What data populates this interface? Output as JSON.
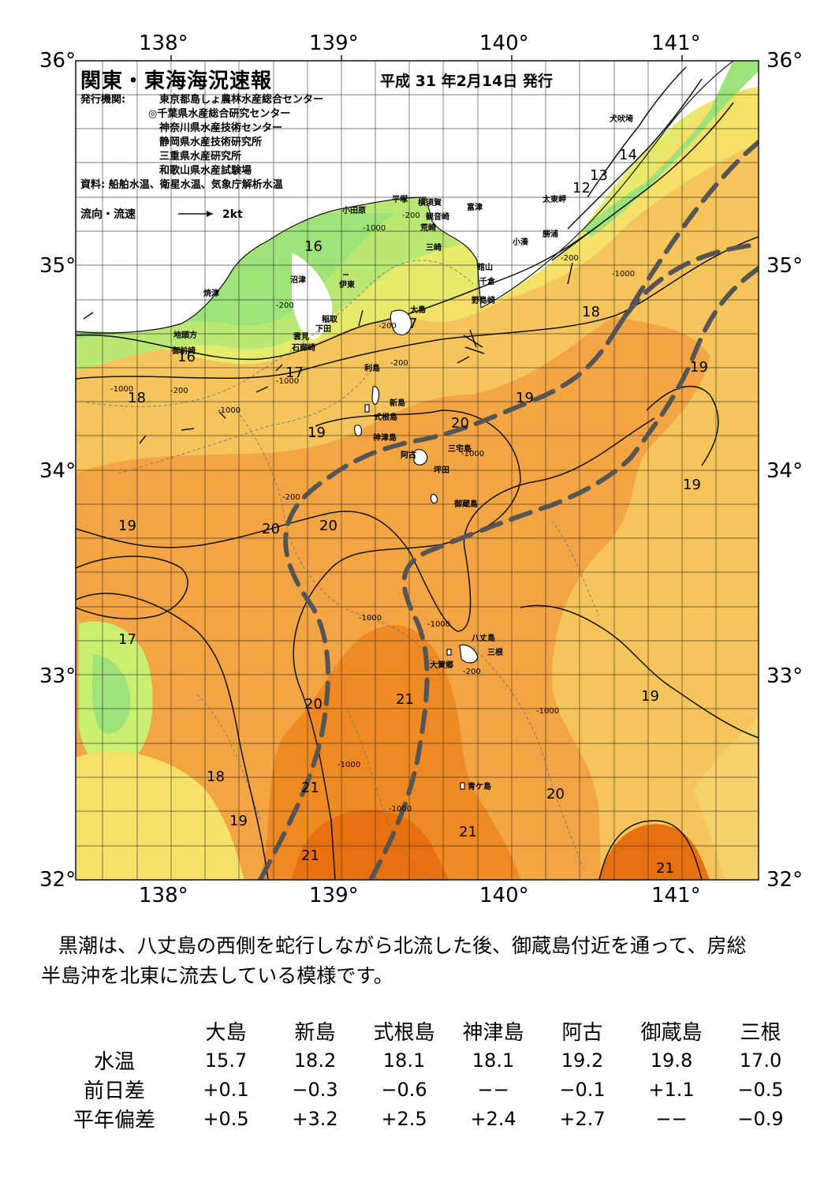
{
  "header": {
    "title": "関東・東海海況速報",
    "issue_date": "平成 31 年2月14日 発行",
    "issuer_label": "発行機関:",
    "issuers": [
      "東京都島しょ農林水産総合センター",
      "◎千葉県水産総合研究センター",
      "神奈川県水産技術センター",
      "静岡県水産技術研究所",
      "三重県水産研究所",
      "和歌山県水産試験場"
    ],
    "source": "資料: 船舶水温、衛星水温、気象庁解析水温",
    "flow_legend_label": "流向・流速",
    "flow_legend_speed": "2kt"
  },
  "axes": {
    "longitude_ticks": [
      "138°",
      "139°",
      "140°",
      "141°"
    ],
    "latitude_ticks": [
      "36°",
      "35°",
      "34°",
      "33°",
      "32°"
    ]
  },
  "places": [
    {
      "name": "犬吠埼"
    },
    {
      "name": "太東岬"
    },
    {
      "name": "勝浦"
    },
    {
      "name": "小湊"
    },
    {
      "name": "富津"
    },
    {
      "name": "館山"
    },
    {
      "name": "千倉"
    },
    {
      "name": "野島崎"
    },
    {
      "name": "横須賀"
    },
    {
      "name": "観音崎"
    },
    {
      "name": "荒崎"
    },
    {
      "name": "三崎"
    },
    {
      "name": "平塚"
    },
    {
      "name": "小田原"
    },
    {
      "name": "沼津"
    },
    {
      "name": "伊東"
    },
    {
      "name": "焼津"
    },
    {
      "name": "稲取"
    },
    {
      "name": "下田"
    },
    {
      "name": "雲見"
    },
    {
      "name": "石廊崎"
    },
    {
      "name": "地頭方"
    },
    {
      "name": "御前崎"
    },
    {
      "name": "大島"
    },
    {
      "name": "利島"
    },
    {
      "name": "新島"
    },
    {
      "name": "式根島"
    },
    {
      "name": "神津島"
    },
    {
      "name": "三宅島"
    },
    {
      "name": "阿古"
    },
    {
      "name": "坪田"
    },
    {
      "name": "御蔵島"
    },
    {
      "name": "八丈島"
    },
    {
      "name": "三根"
    },
    {
      "name": "大賀郷"
    },
    {
      "name": "青ケ島"
    }
  ],
  "isotherm_labels": [
    "12",
    "13",
    "14",
    "16",
    "16",
    "7",
    "18",
    "17",
    "18",
    "19",
    "19",
    "20",
    "19",
    "20",
    "20",
    "19",
    "19",
    "17",
    "20",
    "21",
    "21",
    "19",
    "18",
    "19",
    "21",
    "20",
    "21",
    "21"
  ],
  "depth_labels": [
    "-200",
    "-1000",
    "-200",
    "-1000",
    "-200",
    "-200",
    "-200",
    "-1000",
    "-200",
    "-1000",
    "-200",
    "-1000",
    "-1000",
    "-1000",
    "-1000",
    "-200",
    "-1000",
    "-1000",
    "-1000"
  ],
  "summary": [
    "黒潮は、八丈島の西側を蛇行しながら北流した後、御蔵島付近を通って、房総",
    "半島沖を北東に流去している模様です。"
  ],
  "table": {
    "stations": [
      "大島",
      "新島",
      "式根島",
      "神津島",
      "阿古",
      "御蔵島",
      "三根"
    ],
    "rows": [
      {
        "label": "水温",
        "values": [
          "15.7",
          "18.2",
          "18.1",
          "18.1",
          "19.2",
          "19.8",
          "17.0"
        ]
      },
      {
        "label": "前日差",
        "values": [
          "+0.1",
          "−0.3",
          "−0.6",
          "−−",
          "−0.1",
          "+1.1",
          "−0.5"
        ]
      },
      {
        "label": "平年偏差",
        "values": [
          "+0.5",
          "+3.2",
          "+2.5",
          "+2.4",
          "+2.7",
          "−−",
          "−0.9"
        ]
      }
    ]
  },
  "colors": {
    "sst_12": "#1fb6ef",
    "sst_14": "#5fd2e8",
    "sst_16": "#9ee37a",
    "sst_17": "#c9ef70",
    "sst_18": "#f6e168",
    "sst_19": "#f5c45a",
    "sst_20": "#f3a543",
    "sst_21": "#ef8a22",
    "sst_22": "#e8700f",
    "kuroshio_axis": "#555555",
    "land": "#ffffff",
    "no_data": "#ffffff"
  }
}
